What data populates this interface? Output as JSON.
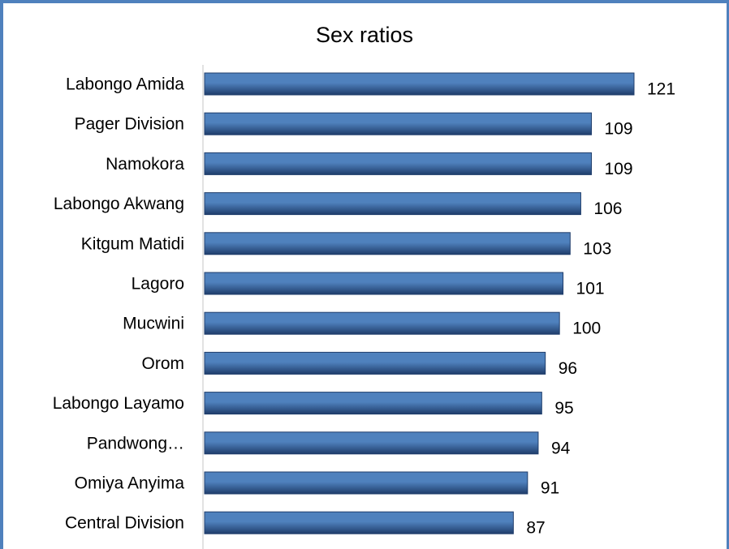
{
  "chart_data": {
    "type": "bar",
    "orientation": "horizontal",
    "title": "Sex ratios",
    "xlabel": "",
    "ylabel": "",
    "categories": [
      "Labongo Amida",
      "Pager Division",
      "Namokora",
      "Labongo Akwang",
      "Kitgum Matidi",
      "Lagoro",
      "Mucwini",
      "Orom",
      "Labongo Layamo",
      "Pandwong…",
      "Omiya Anyima",
      "Central Division"
    ],
    "values": [
      121,
      109,
      109,
      106,
      103,
      101,
      100,
      96,
      95,
      94,
      91,
      87
    ],
    "data_labels": [
      "121",
      "109",
      "109",
      "106",
      "103",
      "101",
      "100",
      "96",
      "95",
      "94",
      "91",
      "87"
    ],
    "xlim": [
      0,
      130
    ],
    "grid": false,
    "legend": "none",
    "bar_color_top": "#4f81bd",
    "bar_color_bottom": "#1f3d6b",
    "frame_color": "#4f81bd"
  }
}
